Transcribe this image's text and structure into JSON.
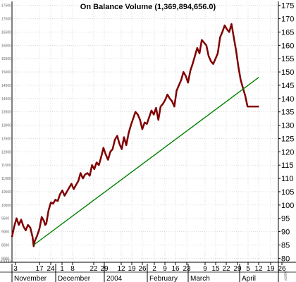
{
  "chart_data": {
    "type": "line",
    "title": "On Balance Volume (1,369,894,656.0)",
    "right_axis": {
      "ticks": [
        175,
        170,
        165,
        160,
        155,
        150,
        145,
        140,
        135,
        130,
        125,
        120,
        115,
        110,
        105,
        100,
        95,
        90,
        85,
        80
      ],
      "ylim": [
        78.5,
        176.5
      ],
      "unit_label": "x1000"
    },
    "left_axis": {
      "ticks": [
        "17500",
        "17000",
        "16500",
        "16000",
        "15500",
        "15000",
        "14500",
        "14000",
        "13500",
        "13000",
        "12500",
        "12000",
        "11500",
        "11000",
        "10500",
        "10000",
        "9500",
        "9000",
        "8500",
        "8000"
      ],
      "bottom_label": "x1000"
    },
    "x_axis": {
      "day_labels": [
        "3",
        "17",
        "24",
        "1",
        "8",
        "22",
        "29",
        "12",
        "19",
        "26",
        "2",
        "9",
        "16",
        "23",
        "9",
        "15",
        "22",
        "29",
        "5",
        "12",
        "19",
        "26"
      ],
      "month_labels": [
        "November",
        "December",
        "2004",
        "February",
        "March",
        "April"
      ]
    },
    "series": [
      {
        "color": "#800000",
        "x": [
          0,
          2,
          4,
          6,
          8,
          10,
          12,
          14,
          16,
          18,
          19,
          20,
          22,
          24,
          26,
          28,
          29,
          30,
          32,
          34,
          36,
          38,
          40,
          42,
          44,
          46,
          48,
          50,
          52,
          54,
          56,
          58,
          60,
          62,
          64,
          66,
          68,
          70,
          72,
          74,
          76,
          78,
          80,
          82,
          84,
          86,
          88,
          90,
          92,
          94,
          96,
          98,
          100,
          102,
          104,
          106,
          108,
          110,
          112,
          114,
          116,
          118,
          120,
          122,
          124,
          126,
          128,
          130,
          132,
          134,
          136,
          138,
          140,
          142,
          144,
          146,
          148,
          150,
          152,
          154,
          156,
          158,
          160,
          162,
          164,
          166,
          168,
          170,
          172,
          174,
          176,
          178,
          180,
          182,
          184,
          186,
          188,
          190,
          192,
          194,
          196,
          198,
          200,
          202,
          204,
          206,
          208,
          210,
          212,
          214,
          216
        ],
        "y": [
          88.0,
          92.0,
          95.0,
          92.5,
          94.5,
          92.0,
          90.5,
          92.5,
          91.5,
          88.0,
          84.5,
          86.5,
          88.5,
          91.0,
          95.5,
          94.0,
          92.5,
          93.0,
          98.0,
          101.0,
          100.5,
          102.0,
          101.5,
          104.0,
          105.5,
          103.5,
          105.0,
          106.5,
          108.0,
          106.0,
          107.5,
          109.0,
          112.0,
          110.0,
          111.5,
          112.0,
          111.0,
          115.0,
          113.5,
          116.0,
          115.0,
          118.0,
          121.5,
          119.0,
          117.0,
          120.0,
          121.0,
          124.5,
          126.0,
          123.0,
          121.0,
          125.5,
          122.5,
          127.0,
          130.0,
          132.5,
          135.0,
          134.0,
          132.0,
          128.5,
          131.0,
          130.5,
          133.0,
          135.5,
          134.0,
          136.5,
          132.0,
          137.0,
          138.0,
          139.5,
          141.5,
          140.0,
          139.0,
          137.0,
          143.0,
          145.0,
          147.0,
          150.0,
          148.5,
          146.0,
          150.5,
          153.0,
          156.0,
          159.0,
          157.0,
          162.0,
          161.0,
          160.0,
          156.0,
          154.0,
          153.0,
          155.0,
          157.0,
          163.0,
          165.0,
          167.5,
          166.0,
          165.0,
          168.0,
          163.0,
          158.0,
          152.0,
          147.0,
          144.0,
          141.0,
          137.0,
          137.0,
          137.0,
          137.0,
          137.0,
          137.0
        ]
      },
      {
        "color": "#008000",
        "x": [
          19,
          216
        ],
        "y": [
          85.0,
          148.0
        ]
      }
    ],
    "grid": true
  }
}
